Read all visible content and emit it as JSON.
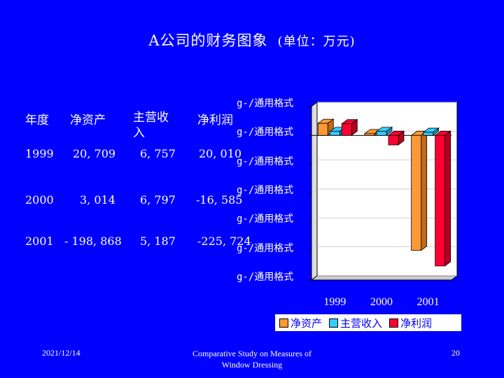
{
  "slide": {
    "title": "A公司的财务图象",
    "unit": "(单位：万元)",
    "date": "2021/12/14",
    "footer_line1": "Comparative Study on Measures of",
    "footer_line2": "Window Dressing",
    "page_number": "20"
  },
  "table": {
    "headers": [
      "年度",
      "净资产",
      "主营收入",
      "净利润"
    ],
    "rows": [
      [
        "1999",
        "20, 709",
        "6, 757",
        "20, 010"
      ],
      [
        "2000",
        "3, 014",
        "6, 797",
        "-16, 585"
      ],
      [
        "2001",
        "- 198, 868",
        "5, 187",
        "-225, 724"
      ]
    ]
  },
  "colors": {
    "background": "#0000FF",
    "net_assets": "#FF9933",
    "revenue": "#33CCFF",
    "net_profit": "#FF0033"
  },
  "chart_data": {
    "type": "bar",
    "categories": [
      "1999",
      "2000",
      "2001"
    ],
    "series": [
      {
        "name": "净资产",
        "values": [
          20709,
          3014,
          -198868
        ]
      },
      {
        "name": "主营收入",
        "values": [
          6757,
          6797,
          5187
        ]
      },
      {
        "name": "净利润",
        "values": [
          20010,
          -16585,
          -225724
        ]
      }
    ],
    "ylim": [
      -250000,
      50000
    ],
    "y_tick_label": "g-/通用格式",
    "legend_position": "bottom",
    "three_d": true
  }
}
